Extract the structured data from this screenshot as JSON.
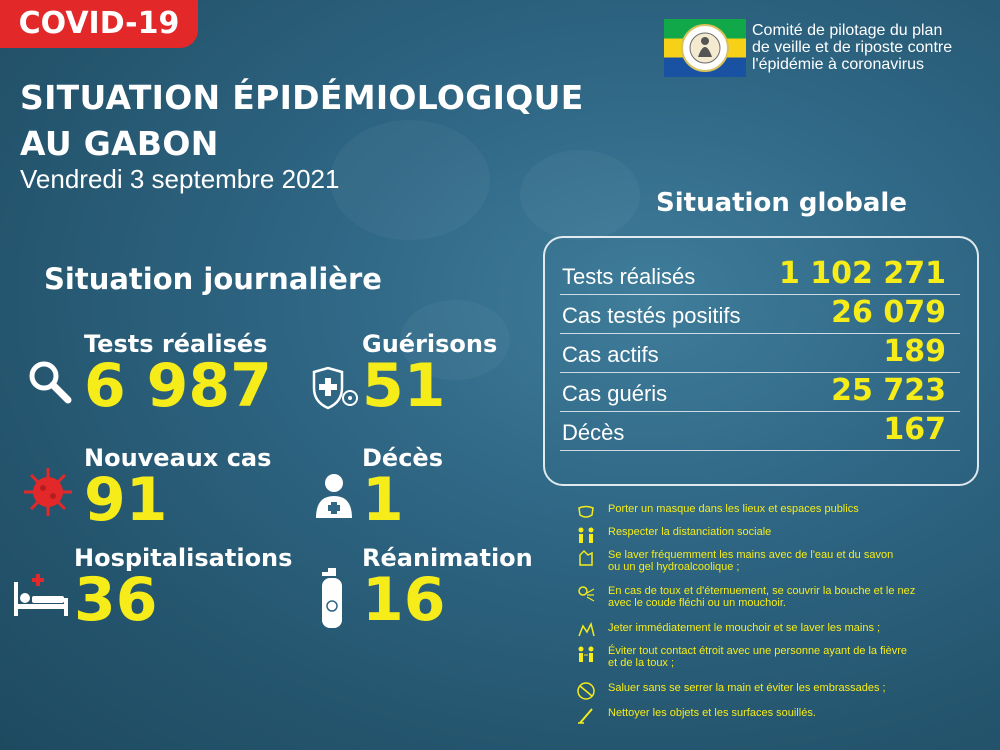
{
  "badge": "COVID-19",
  "title_line1": "SITUATION ÉPIDÉMIOLOGIQUE",
  "title_line2": "AU GABON",
  "date": "Vendredi 3 septembre 2021",
  "org_lines": [
    "Comité de pilotage du plan",
    "de veille et de riposte contre",
    "l'épidémie à coronavirus"
  ],
  "daily": {
    "heading": "Situation journalière",
    "tests": {
      "label": "Tests réalisés",
      "value": "6 987"
    },
    "recoveries": {
      "label": "Guérisons",
      "value": "51"
    },
    "new_cases": {
      "label": "Nouveaux cas",
      "value": "91"
    },
    "deaths": {
      "label": "Décès",
      "value": "1"
    },
    "hospitalisations": {
      "label": "Hospitalisations",
      "value": "36"
    },
    "icu": {
      "label": "Réanimation",
      "value": "16"
    }
  },
  "global": {
    "heading": "Situation globale",
    "rows": [
      {
        "label": "Tests réalisés",
        "value": "1 102 271"
      },
      {
        "label": "Cas testés positifs",
        "value": "26 079"
      },
      {
        "label": "Cas actifs",
        "value": "189"
      },
      {
        "label": "Cas guéris",
        "value": "25 723"
      },
      {
        "label": "Décès",
        "value": "167"
      }
    ]
  },
  "advice": [
    {
      "icon": "mask-icon",
      "text": "Porter un masque dans les lieux et espaces publics"
    },
    {
      "icon": "distance-icon",
      "text": "Respecter la distanciation sociale"
    },
    {
      "icon": "handwash-icon",
      "text": "Se laver fréquemment les mains avec de l'eau et du savon\n ou un gel hydroalcoolique ;"
    },
    {
      "icon": "sneeze-icon",
      "text": "En cas de toux et d'éternuement, se couvrir la bouche et le nez\n avec le coude fléchi ou un mouchoir."
    },
    {
      "icon": "tissue-icon",
      "text": "Jeter immédiatement le mouchoir et se laver les mains ;"
    },
    {
      "icon": "avoid-contact-icon",
      "text": "Éviter tout contact étroit avec une personne ayant de la fièvre\n et de la toux ;"
    },
    {
      "icon": "no-handshake-icon",
      "text": "Saluer sans se serrer la main et éviter les embrassades ;"
    },
    {
      "icon": "clean-icon",
      "text": "Nettoyer les objets et les surfaces souillés."
    }
  ],
  "colors": {
    "accent": "#f5ec1a",
    "badge": "#e3282a",
    "flag_green": "#11a84a",
    "flag_yellow": "#f7d117",
    "flag_blue": "#1a52a3"
  }
}
